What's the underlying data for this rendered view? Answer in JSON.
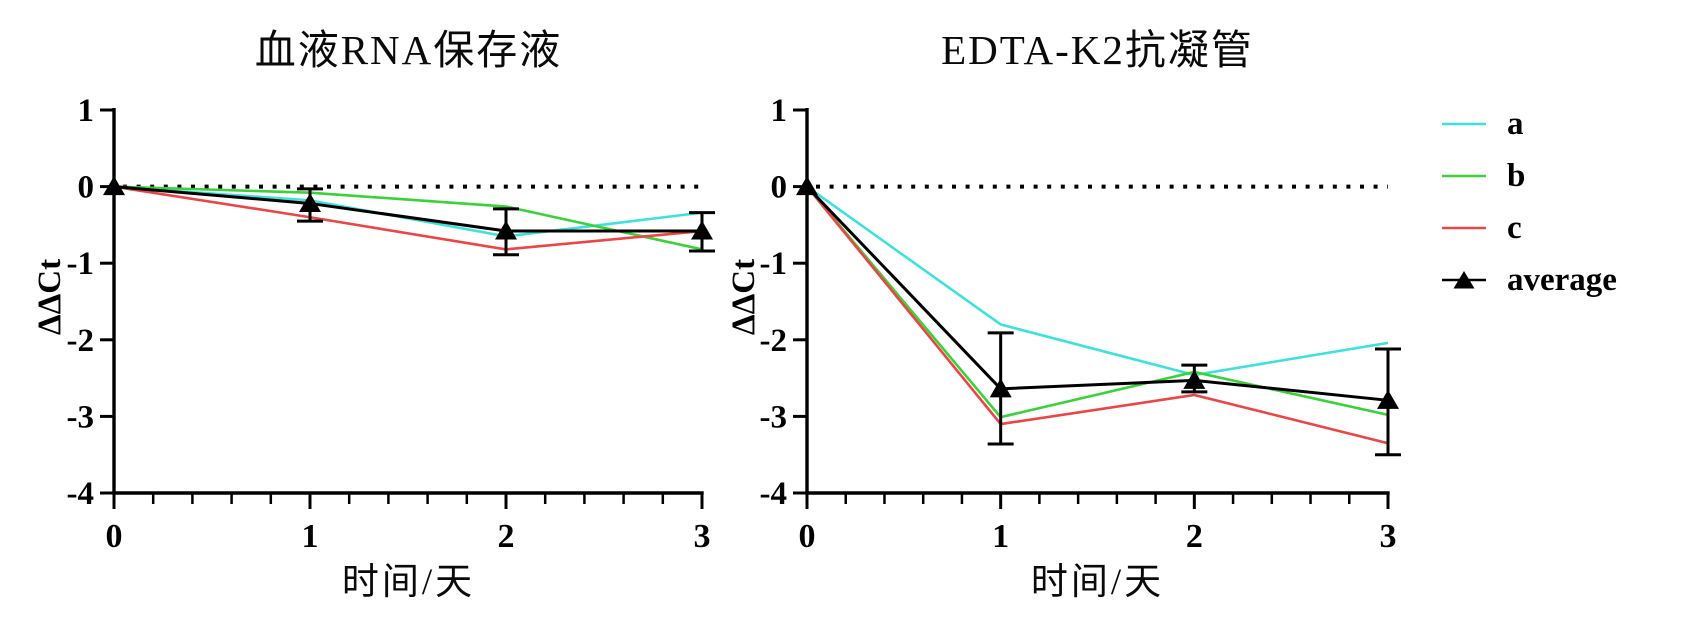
{
  "figure": {
    "background": "#ffffff",
    "axis_color": "#000000"
  },
  "legend": {
    "items": [
      {
        "label": "a",
        "color": "#3EE1DB",
        "marker": "line"
      },
      {
        "label": "b",
        "color": "#39D239",
        "marker": "line"
      },
      {
        "label": "c",
        "color": "#EC4545",
        "marker": "line"
      },
      {
        "label": "average",
        "color": "#000000",
        "marker": "line-triangle"
      }
    ]
  },
  "chart_data": [
    {
      "type": "line",
      "title": "血液RNA保存液",
      "xlabel": "时间/天",
      "ylabel": "ΔΔCt",
      "x": [
        0,
        1,
        2,
        3
      ],
      "xlim": [
        0,
        3
      ],
      "ylim": [
        -4,
        1
      ],
      "xticks": [
        0,
        1,
        2,
        3
      ],
      "yticks": [
        1,
        0,
        -1,
        -2,
        -3,
        -4
      ],
      "minor_x_divisions": 5,
      "zero_line_style": "dotted",
      "grid": false,
      "series": [
        {
          "name": "a",
          "color": "#3EE1DB",
          "values": [
            0,
            -0.18,
            -0.65,
            -0.34
          ]
        },
        {
          "name": "b",
          "color": "#39D239",
          "values": [
            0,
            -0.08,
            -0.26,
            -0.82
          ]
        },
        {
          "name": "c",
          "color": "#EC4545",
          "values": [
            0,
            -0.4,
            -0.82,
            -0.58
          ]
        },
        {
          "name": "average",
          "color": "#000000",
          "marker": "triangle",
          "values": [
            0,
            -0.22,
            -0.58,
            -0.58
          ],
          "error_high": [
            0,
            -0.03,
            -0.29,
            -0.34
          ],
          "error_low": [
            0,
            -0.45,
            -0.89,
            -0.84
          ]
        }
      ]
    },
    {
      "type": "line",
      "title": "EDTA-K2抗凝管",
      "xlabel": "时间/天",
      "ylabel": "ΔΔCt",
      "x": [
        0,
        1,
        2,
        3
      ],
      "xlim": [
        0,
        3
      ],
      "ylim": [
        -4,
        1
      ],
      "xticks": [
        0,
        1,
        2,
        3
      ],
      "yticks": [
        1,
        0,
        -1,
        -2,
        -3,
        -4
      ],
      "minor_x_divisions": 5,
      "zero_line_style": "dotted",
      "grid": false,
      "series": [
        {
          "name": "a",
          "color": "#3EE1DB",
          "values": [
            0,
            -1.8,
            -2.46,
            -2.04
          ]
        },
        {
          "name": "b",
          "color": "#39D239",
          "values": [
            0,
            -3.01,
            -2.42,
            -2.98
          ]
        },
        {
          "name": "c",
          "color": "#EC4545",
          "values": [
            0,
            -3.1,
            -2.72,
            -3.35
          ]
        },
        {
          "name": "average",
          "color": "#000000",
          "marker": "triangle",
          "values": [
            0,
            -2.64,
            -2.53,
            -2.79
          ],
          "error_high": [
            0,
            -1.91,
            -2.33,
            -2.12
          ],
          "error_low": [
            0,
            -3.36,
            -2.68,
            -3.5
          ]
        }
      ]
    }
  ]
}
